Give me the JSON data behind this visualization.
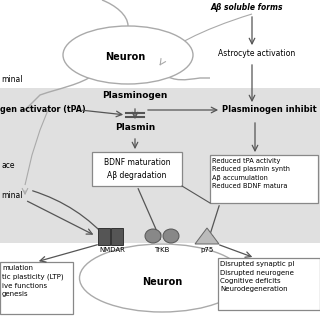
{
  "figsize": [
    3.2,
    3.2
  ],
  "dpi": 100,
  "white_bg": "#ffffff",
  "gray_bg": "#e0e0e0",
  "arrow_color": "#555555",
  "neuron_edge": "#aaaaaa",
  "box_edge": "#888888",
  "dark_receptor": "#555555",
  "mid_receptor": "#888888",
  "light_receptor": "#bbbbbb",
  "texts": {
    "neuron_top": "Neuron",
    "neuron_bottom": "Neuron",
    "abeta": "Aβ soluble forms",
    "astrocyte": "Astrocyte activation",
    "plasminogen": "Plasminogen",
    "plasmin": "Plasmin",
    "tpa": "gen activator (tPA)",
    "plas_inhib": "Plasminogen inhibit",
    "bdnf_box": "BDNF maturation\nAβ degradation",
    "reduced_box": "Reduced tPA activity\nReduced plasmin synth\nAβ accumulation\nReduced BDNF matura",
    "nmdar": "NMDAR",
    "trkb": "TrKB",
    "p75": "p75",
    "left_top1": "minal",
    "left_mid": "ace",
    "left_bot": "minal",
    "pos_box": "mulation\ntic plasticity (LTP)\nive functions\ngenesis",
    "neg_box": "Disrupted synaptic pl\nDisrupted neurogene\nCognitive deficits\nNeurodegeneration"
  }
}
